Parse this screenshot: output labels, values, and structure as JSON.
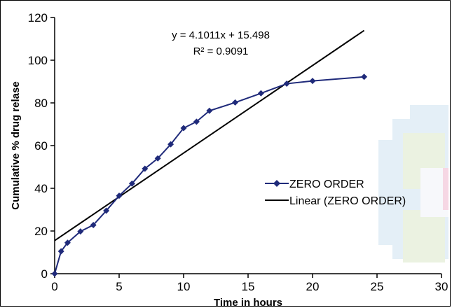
{
  "chart_data": {
    "type": "line",
    "title": "",
    "xlabel": "Time in hours",
    "ylabel": "Cumulative % drug relase",
    "xlim": [
      0,
      30
    ],
    "ylim": [
      0,
      120
    ],
    "xticks": [
      "0",
      "5",
      "10",
      "15",
      "20",
      "25",
      "30"
    ],
    "yticks": [
      "0",
      "20",
      "40",
      "60",
      "80",
      "100",
      "120"
    ],
    "grid": false,
    "legend_position": "right",
    "series": [
      {
        "name": "ZERO ORDER",
        "color": "#1f2a7a",
        "marker": "diamond",
        "x": [
          0,
          0.5,
          1,
          2,
          3,
          4,
          5,
          6,
          7,
          8,
          9,
          10,
          11,
          12,
          14,
          16,
          18,
          20,
          24
        ],
        "y": [
          0,
          10.5,
          14.5,
          19.8,
          22.8,
          29.5,
          36.5,
          42.2,
          49.2,
          54,
          60.6,
          68.2,
          71.2,
          76.3,
          80.2,
          84.5,
          89,
          90.3,
          92.2
        ]
      },
      {
        "name": "Linear (ZERO ORDER)",
        "color": "#000000",
        "type": "trendline",
        "slope": 4.1011,
        "intercept": 15.498,
        "x_range": [
          0,
          24
        ]
      }
    ],
    "annotations": {
      "equation": "y = 4.1011x + 15.498",
      "r_squared": "R² = 0.9091"
    }
  }
}
